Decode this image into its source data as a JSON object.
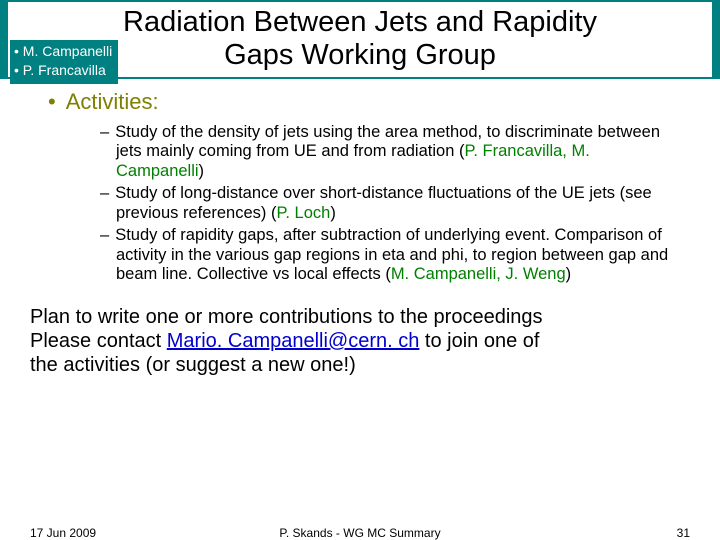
{
  "header": {
    "title_line1": "Radiation Between Jets and Rapidity",
    "title_line2": "Gaps Working Group",
    "authors": [
      "• M. Campanelli",
      "• P. Francavilla"
    ],
    "bar_color": "#008080"
  },
  "activities": {
    "heading": "Activities:",
    "items": [
      {
        "pre": "Study of the density of jets using the area method, to discriminate between jets mainly coming from UE and from radiation (",
        "green": "P. Francavilla, M. Campanelli",
        "post": ")"
      },
      {
        "pre": "Study of long-distance over short-distance fluctuations of the UE jets (see previous references) (",
        "green": "P. Loch",
        "post": ")"
      },
      {
        "pre": "Study of rapidity gaps, after subtraction of underlying event. Comparison of activity in the various gap regions in eta and phi, to region between gap and beam line. Collective vs local effects (",
        "green": "M. Campanelli, J. Weng",
        "post": ")"
      }
    ]
  },
  "plan": {
    "line1": "Plan to write one or more contributions to the proceedings",
    "line2a": "Please contact ",
    "email": "Mario. Campanelli@cern. ch",
    "line2b": " to join one of",
    "line3": "the activities (or suggest a new one!)"
  },
  "footer": {
    "date": "17 Jun 2009",
    "center": "P. Skands - WG MC Summary",
    "page": "31"
  },
  "colors": {
    "heading": "#7f7f00",
    "green": "#008000",
    "link": "#0000cc"
  }
}
